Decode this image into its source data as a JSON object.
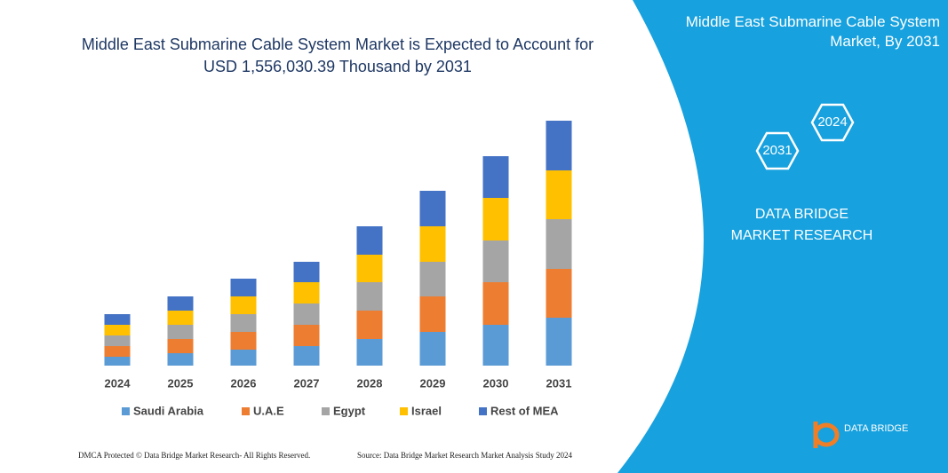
{
  "chart_data": {
    "type": "stacked-bar",
    "title": "Middle East Submarine Cable System Market is Expected to Account for USD 1,556,030.39 Thousand by 2031",
    "categories": [
      "2024",
      "2025",
      "2026",
      "2027",
      "2028",
      "2029",
      "2030",
      "2031"
    ],
    "series": [
      {
        "name": "Saudi Arabia",
        "color": "#5b9bd5",
        "values": [
          10,
          14,
          18,
          22,
          30,
          38,
          46,
          54
        ]
      },
      {
        "name": "U.A.E",
        "color": "#ed7d31",
        "values": [
          12,
          16,
          20,
          24,
          32,
          40,
          48,
          55
        ]
      },
      {
        "name": "Egypt",
        "color": "#a5a5a5",
        "values": [
          12,
          16,
          20,
          24,
          32,
          39,
          47,
          56
        ]
      },
      {
        "name": "Israel",
        "color": "#ffc000",
        "values": [
          12,
          16,
          20,
          24,
          31,
          40,
          48,
          55
        ]
      },
      {
        "name": "Rest of MEA",
        "color": "#4472c4",
        "values": [
          12,
          16,
          20,
          23,
          32,
          40,
          47,
          56
        ]
      }
    ]
  },
  "panel": {
    "title": "Middle East Submarine Cable System Market, By 2031",
    "hex_left": "2031",
    "hex_right": "2024",
    "brand": "DATA BRIDGE MARKET RESEARCH"
  },
  "footer": {
    "left": "DMCA Protected © Data Bridge Market Research- All Rights Reserved.",
    "right": "Source: Data Bridge Market Research Market Analysis Study 2024"
  },
  "logo": "DATA BRIDGE"
}
